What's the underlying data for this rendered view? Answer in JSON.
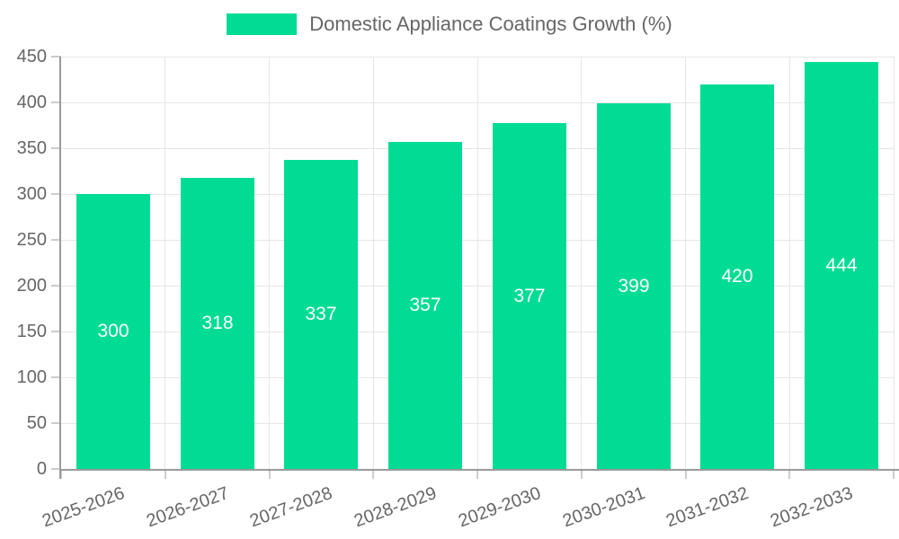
{
  "chart_data": {
    "type": "bar",
    "title": "Domestic Appliance Coatings Growth (%)",
    "legend": {
      "label": "Domestic Appliance Coatings Growth (%)",
      "position": "top"
    },
    "categories": [
      "2025-2026",
      "2026-2027",
      "2027-2028",
      "2028-2029",
      "2029-2030",
      "2030-2031",
      "2031-2032",
      "2032-2033"
    ],
    "values": [
      300,
      318,
      337,
      357,
      377,
      399,
      420,
      444
    ],
    "value_labels_shown": true,
    "xlabel": "",
    "ylabel": "",
    "ylim": [
      0,
      450
    ],
    "yticks": [
      0,
      50,
      100,
      150,
      200,
      250,
      300,
      350,
      400,
      450
    ],
    "grid": true,
    "x_label_rotation_deg": -20,
    "colors": {
      "bar": "#00DC94",
      "value_label": "#FFFFFF",
      "axis_text": "#666666",
      "title_text": "#666666",
      "gridline": "#E6E6E6",
      "axis_line": "#9A9A9A",
      "tick": "#CCCCCC",
      "background": "#FFFFFF"
    }
  }
}
